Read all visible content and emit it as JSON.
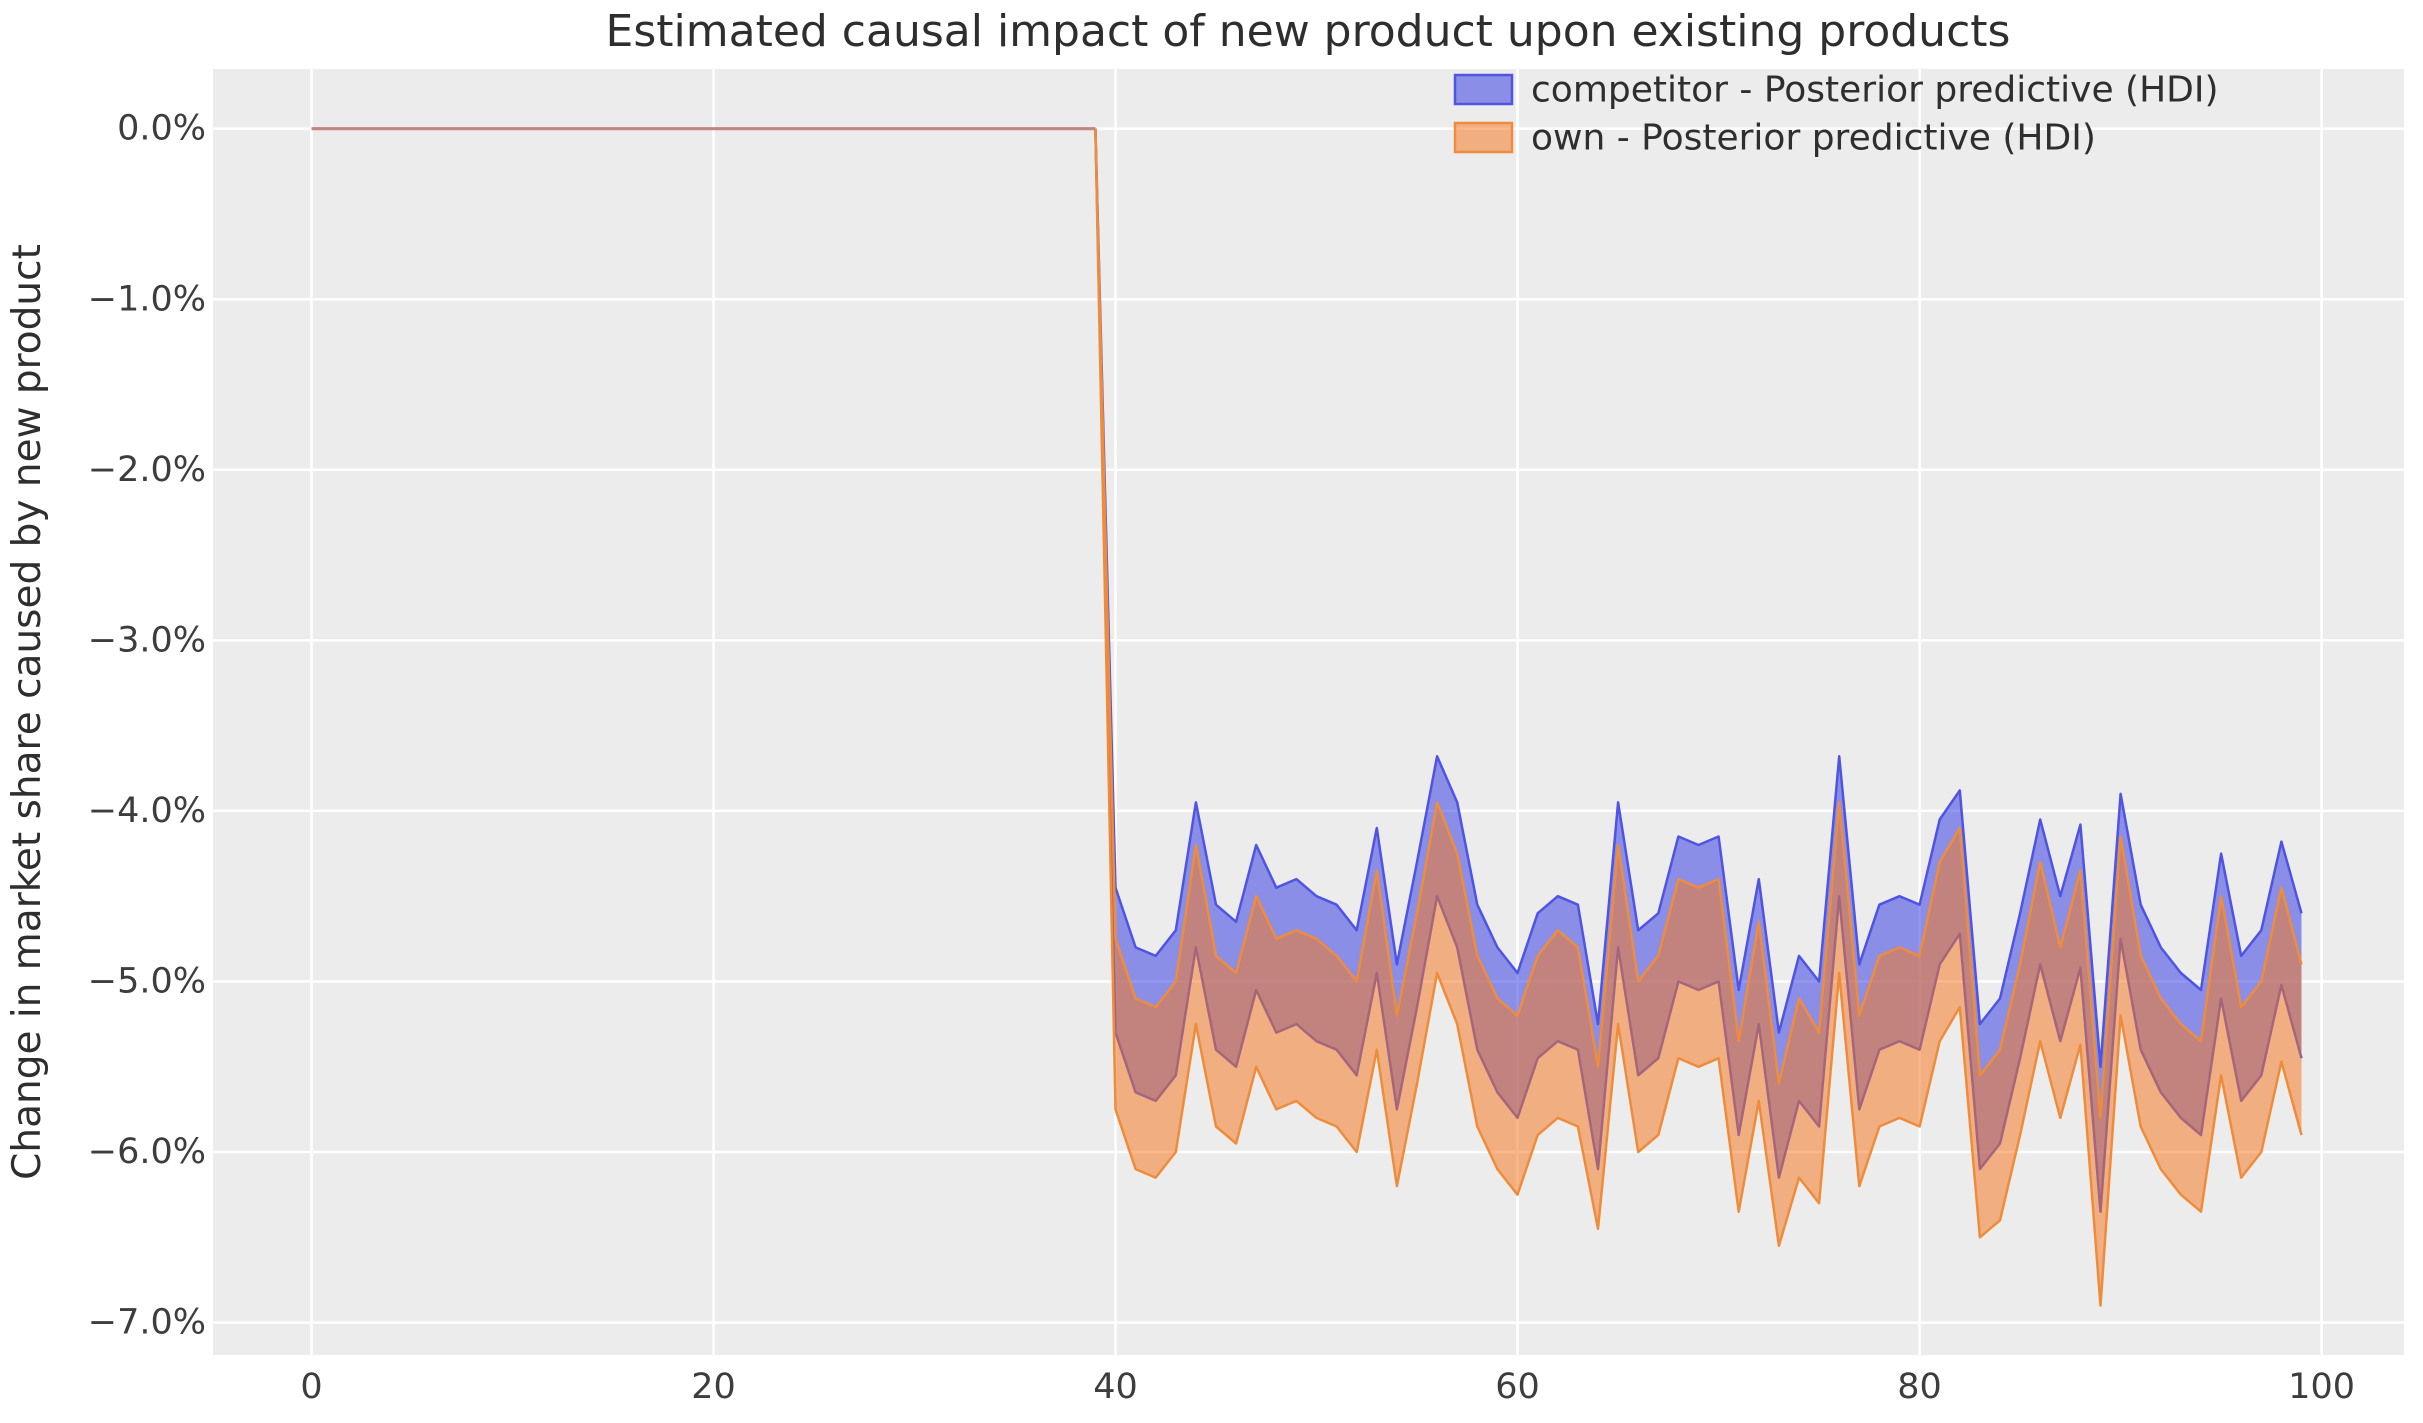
{
  "chart_data": {
    "type": "area",
    "title": "Estimated causal impact of new product upon existing products",
    "xlabel": "",
    "ylabel": "Change in market share caused by new product",
    "xlim": [
      -4.9,
      104.1
    ],
    "ylim": [
      -7.19,
      0.35
    ],
    "grid": true,
    "plot_background": "#ececec",
    "grid_color": "#ffffff",
    "tick_color": "#3d3d3d",
    "title_color": "#2e2e2e",
    "x_ticks": [
      0,
      20,
      40,
      60,
      80,
      100
    ],
    "y_ticks": [
      {
        "value": 0,
        "label": "0.0%"
      },
      {
        "value": -1,
        "label": "−1.0%"
      },
      {
        "value": -2,
        "label": "−2.0%"
      },
      {
        "value": -3,
        "label": "−3.0%"
      },
      {
        "value": -4,
        "label": "−4.0%"
      },
      {
        "value": -5,
        "label": "−5.0%"
      },
      {
        "value": -6,
        "label": "−6.0%"
      },
      {
        "value": -7,
        "label": "−7.0%"
      }
    ],
    "legend": {
      "position": "upper right",
      "entries": [
        {
          "label": "competitor - Posterior predictive (HDI)",
          "fill": "rgba(42,48,226,0.5)",
          "edge": "#4f54e2"
        },
        {
          "label": "own - Posterior predictive (HDI)",
          "fill": "rgba(246,118,30,0.52)",
          "edge": "#ee8c3c"
        }
      ]
    },
    "pre_period": {
      "x": [
        0,
        39
      ],
      "value": 0,
      "line_color": "#c28584"
    },
    "series": [
      {
        "name": "competitor - Posterior predictive (HDI)",
        "fill": "rgba(42,48,226,0.5)",
        "line": "#4f54e2",
        "x": [
          39,
          40,
          41,
          42,
          43,
          44,
          45,
          46,
          47,
          48,
          49,
          50,
          51,
          52,
          53,
          54,
          55,
          56,
          57,
          58,
          59,
          60,
          61,
          62,
          63,
          64,
          65,
          66,
          67,
          68,
          69,
          70,
          71,
          72,
          73,
          74,
          75,
          76,
          77,
          78,
          79,
          80,
          81,
          82,
          83,
          84,
          85,
          86,
          87,
          88,
          89,
          90,
          91,
          92,
          93,
          94,
          95,
          96,
          97,
          98,
          99
        ],
        "upper": [
          0,
          -4.45,
          -4.8,
          -4.85,
          -4.7,
          -3.95,
          -4.55,
          -4.65,
          -4.2,
          -4.45,
          -4.4,
          -4.5,
          -4.55,
          -4.7,
          -4.1,
          -4.9,
          -4.3,
          -3.68,
          -3.95,
          -4.55,
          -4.8,
          -4.95,
          -4.6,
          -4.5,
          -4.55,
          -5.25,
          -3.95,
          -4.7,
          -4.6,
          -4.15,
          -4.2,
          -4.15,
          -5.05,
          -4.4,
          -5.3,
          -4.85,
          -5.0,
          -3.68,
          -4.9,
          -4.55,
          -4.5,
          -4.55,
          -4.05,
          -3.88,
          -5.25,
          -5.1,
          -4.6,
          -4.05,
          -4.5,
          -4.08,
          -5.5,
          -3.9,
          -4.55,
          -4.8,
          -4.95,
          -5.05,
          -4.25,
          -4.85,
          -4.7,
          -4.18,
          -4.6
        ],
        "lower": [
          0,
          -5.3,
          -5.65,
          -5.7,
          -5.55,
          -4.8,
          -5.4,
          -5.5,
          -5.05,
          -5.3,
          -5.25,
          -5.35,
          -5.4,
          -5.55,
          -4.95,
          -5.75,
          -5.15,
          -4.5,
          -4.8,
          -5.4,
          -5.65,
          -5.8,
          -5.45,
          -5.35,
          -5.4,
          -6.1,
          -4.8,
          -5.55,
          -5.45,
          -5.0,
          -5.05,
          -5.0,
          -5.9,
          -5.25,
          -6.15,
          -5.7,
          -5.85,
          -4.5,
          -5.75,
          -5.4,
          -5.35,
          -5.4,
          -4.9,
          -4.72,
          -6.1,
          -5.95,
          -5.45,
          -4.9,
          -5.35,
          -4.92,
          -6.35,
          -4.75,
          -5.4,
          -5.65,
          -5.8,
          -5.9,
          -5.1,
          -5.7,
          -5.55,
          -5.02,
          -5.45
        ]
      },
      {
        "name": "own - Posterior predictive (HDI)",
        "fill": "rgba(246,118,30,0.52)",
        "line": "#ee8c3c",
        "x": [
          39,
          40,
          41,
          42,
          43,
          44,
          45,
          46,
          47,
          48,
          49,
          50,
          51,
          52,
          53,
          54,
          55,
          56,
          57,
          58,
          59,
          60,
          61,
          62,
          63,
          64,
          65,
          66,
          67,
          68,
          69,
          70,
          71,
          72,
          73,
          74,
          75,
          76,
          77,
          78,
          79,
          80,
          81,
          82,
          83,
          84,
          85,
          86,
          87,
          88,
          89,
          90,
          91,
          92,
          93,
          94,
          95,
          96,
          97,
          98,
          99
        ],
        "upper": [
          0,
          -4.75,
          -5.1,
          -5.15,
          -5.0,
          -4.2,
          -4.85,
          -4.95,
          -4.5,
          -4.75,
          -4.7,
          -4.75,
          -4.85,
          -5.0,
          -4.35,
          -5.2,
          -4.6,
          -3.95,
          -4.25,
          -4.85,
          -5.1,
          -5.2,
          -4.85,
          -4.7,
          -4.8,
          -5.5,
          -4.2,
          -5.0,
          -4.85,
          -4.4,
          -4.45,
          -4.4,
          -5.35,
          -4.65,
          -5.6,
          -5.1,
          -5.3,
          -3.95,
          -5.2,
          -4.85,
          -4.8,
          -4.85,
          -4.3,
          -4.1,
          -5.55,
          -5.4,
          -4.9,
          -4.3,
          -4.8,
          -4.35,
          -5.8,
          -4.15,
          -4.85,
          -5.1,
          -5.25,
          -5.35,
          -4.5,
          -5.15,
          -5.0,
          -4.45,
          -4.9
        ],
        "lower": [
          0,
          -5.75,
          -6.1,
          -6.15,
          -6.0,
          -5.25,
          -5.85,
          -5.95,
          -5.5,
          -5.75,
          -5.7,
          -5.8,
          -5.85,
          -6.0,
          -5.4,
          -6.2,
          -5.6,
          -4.95,
          -5.25,
          -5.85,
          -6.1,
          -6.25,
          -5.9,
          -5.8,
          -5.85,
          -6.45,
          -5.25,
          -6.0,
          -5.9,
          -5.45,
          -5.5,
          -5.45,
          -6.35,
          -5.7,
          -6.55,
          -6.15,
          -6.3,
          -4.95,
          -6.2,
          -5.85,
          -5.8,
          -5.85,
          -5.35,
          -5.15,
          -6.5,
          -6.4,
          -5.9,
          -5.35,
          -5.8,
          -5.37,
          -6.9,
          -5.2,
          -5.85,
          -6.1,
          -6.25,
          -6.35,
          -5.55,
          -6.15,
          -6.0,
          -5.47,
          -5.9
        ]
      }
    ]
  }
}
